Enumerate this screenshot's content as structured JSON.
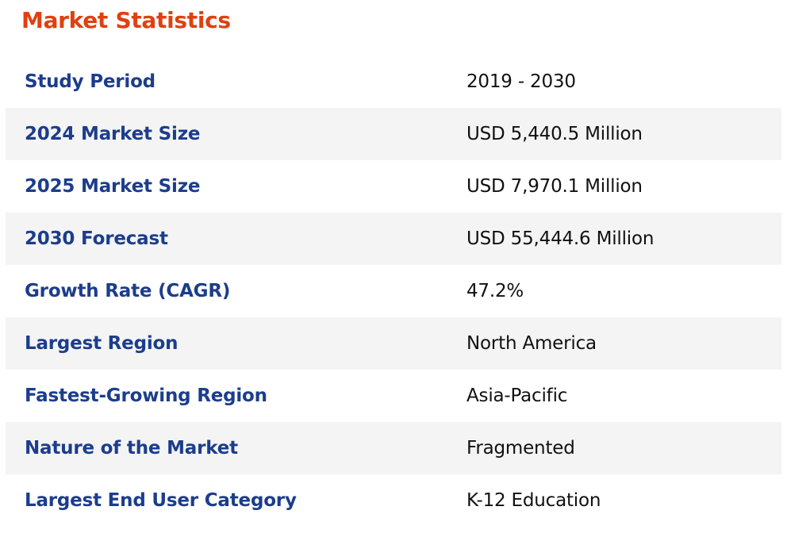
{
  "title": "Market Statistics",
  "rows": [
    {
      "label": "Study Period",
      "value": "2019 - 2030"
    },
    {
      "label": "2024 Market Size",
      "value": "USD 5,440.5 Million"
    },
    {
      "label": "2025 Market Size",
      "value": "USD 7,970.1 Million"
    },
    {
      "label": "2030 Forecast",
      "value": "USD 55,444.6 Million"
    },
    {
      "label": "Growth Rate (CAGR)",
      "value": "47.2%"
    },
    {
      "label": "Largest Region",
      "value": "North America"
    },
    {
      "label": "Fastest-Growing Region",
      "value": "Asia-Pacific"
    },
    {
      "label": "Nature of the Market",
      "value": "Fragmented"
    },
    {
      "label": "Largest End User Category",
      "value": "K-12 Education"
    }
  ],
  "colors": {
    "title": "#e0400f",
    "label": "#1c3d8c",
    "value": "#111111",
    "stripe": "#f4f4f4"
  }
}
